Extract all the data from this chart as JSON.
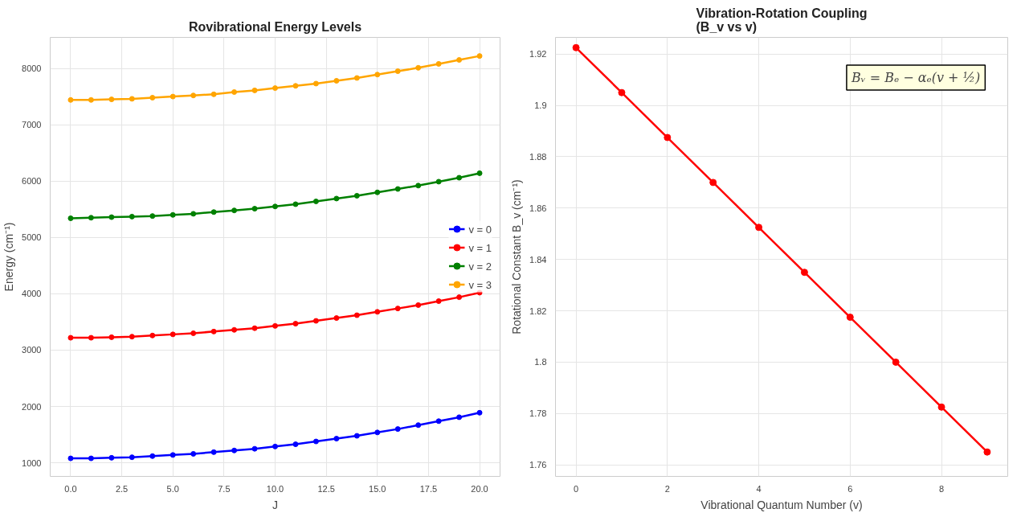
{
  "chart_data": [
    {
      "type": "line",
      "title": "Rovibrational Energy Levels",
      "xlabel": "J",
      "ylabel": "Energy (cm⁻¹)",
      "x": [
        0,
        1,
        2,
        3,
        4,
        5,
        6,
        7,
        8,
        9,
        10,
        11,
        12,
        13,
        14,
        15,
        16,
        17,
        18,
        19,
        20
      ],
      "series": [
        {
          "name": "v = 0",
          "color": "#0000ff",
          "values": [
            1080,
            1080,
            1090,
            1100,
            1120,
            1140,
            1160,
            1190,
            1220,
            1250,
            1290,
            1330,
            1380,
            1430,
            1480,
            1540,
            1600,
            1670,
            1740,
            1810,
            1890
          ]
        },
        {
          "name": "v = 1",
          "color": "#ff0000",
          "values": [
            3220,
            3220,
            3230,
            3240,
            3260,
            3280,
            3300,
            3330,
            3360,
            3390,
            3430,
            3470,
            3520,
            3570,
            3620,
            3680,
            3740,
            3800,
            3870,
            3940,
            4020
          ]
        },
        {
          "name": "v = 2",
          "color": "#008000",
          "values": [
            5340,
            5350,
            5360,
            5370,
            5380,
            5400,
            5420,
            5450,
            5480,
            5510,
            5550,
            5590,
            5640,
            5690,
            5740,
            5800,
            5860,
            5920,
            5990,
            6060,
            6140
          ]
        },
        {
          "name": "v = 3",
          "color": "#ffa500",
          "values": [
            7440,
            7440,
            7450,
            7460,
            7480,
            7500,
            7520,
            7540,
            7580,
            7610,
            7650,
            7690,
            7730,
            7780,
            7830,
            7890,
            7950,
            8010,
            8080,
            8150,
            8220
          ]
        }
      ],
      "xlim": [
        -1,
        21
      ],
      "xticks": [
        {
          "value": 0,
          "label": "0.0"
        },
        {
          "value": 2.5,
          "label": "2.5"
        },
        {
          "value": 5,
          "label": "5.0"
        },
        {
          "value": 7.5,
          "label": "7.5"
        },
        {
          "value": 10,
          "label": "10.0"
        },
        {
          "value": 12.5,
          "label": "12.5"
        },
        {
          "value": 15,
          "label": "15.0"
        },
        {
          "value": 17.5,
          "label": "17.5"
        },
        {
          "value": 20,
          "label": "20.0"
        }
      ],
      "ylim": [
        760,
        8550
      ],
      "yticks": [
        1000,
        2000,
        3000,
        4000,
        5000,
        6000,
        7000,
        8000
      ],
      "grid": true,
      "legend": "right",
      "marker": "circle",
      "line_style": "solid"
    },
    {
      "type": "line",
      "title": "Vibration-Rotation Coupling\n(B_v vs v)",
      "xlabel": "Vibrational Quantum Number (v)",
      "ylabel": "Rotational Constant B_v (cm⁻¹)",
      "x": [
        0,
        1,
        2,
        3,
        4,
        5,
        6,
        7,
        8,
        9
      ],
      "series": [
        {
          "color": "#ff0000",
          "values": [
            1.9225,
            1.905,
            1.8875,
            1.87,
            1.8525,
            1.835,
            1.8175,
            1.8,
            1.7825,
            1.765
          ]
        }
      ],
      "annotations": [
        "Bᵥ = Bₑ − αₑ(v + ½)"
      ],
      "xlim": [
        -0.45,
        9.45
      ],
      "xticks": [
        0,
        2,
        4,
        6,
        8
      ],
      "ylim": [
        1.7555,
        1.9265
      ],
      "yticks": [
        1.76,
        1.78,
        1.8,
        1.82,
        1.84,
        1.86,
        1.88,
        1.9,
        1.92
      ],
      "grid": true,
      "legend": false,
      "marker": "circle",
      "line_style": "solid"
    }
  ]
}
